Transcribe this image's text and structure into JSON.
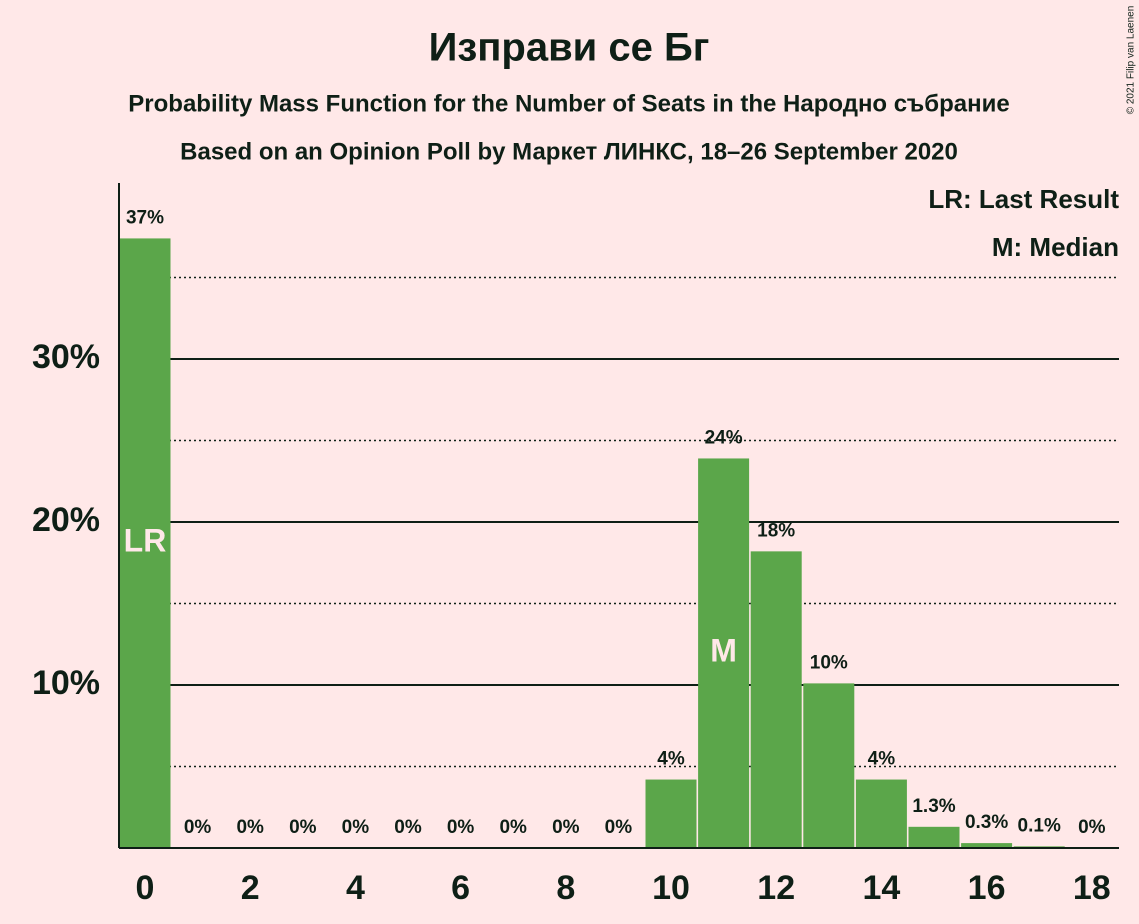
{
  "chart_data": {
    "type": "bar",
    "title": "Изправи се Бг",
    "subtitle": "Probability Mass Function for the Number of Seats in the Народно събрание",
    "subtitle2": "Based on an Opinion Poll by Маркет ЛИНКС, 18–26 September 2020",
    "copyright": "© 2021 Filip van Laenen",
    "categories": [
      0,
      null,
      2,
      null,
      4,
      null,
      6,
      null,
      8,
      null,
      10,
      null,
      12,
      null,
      14,
      null,
      16,
      null,
      18
    ],
    "values": [
      37.4,
      0,
      0,
      0,
      0,
      0,
      0,
      0,
      0,
      0,
      4.2,
      23.9,
      18.2,
      10.1,
      4.2,
      1.3,
      0.3,
      0.1,
      0
    ],
    "value_labels": [
      "37%",
      "0%",
      "0%",
      "0%",
      "0%",
      "0%",
      "0%",
      "0%",
      "0%",
      "0%",
      "4%",
      "24%",
      "18%",
      "10%",
      "4%",
      "1.3%",
      "0.3%",
      "0.1%",
      "0%"
    ],
    "bar_annotations": [
      "LR",
      null,
      null,
      null,
      null,
      null,
      null,
      null,
      null,
      null,
      null,
      "M",
      null,
      null,
      null,
      null,
      null,
      null,
      null
    ],
    "color": "#5ba64a",
    "ylim": [
      0,
      40.8
    ],
    "yticks": [
      {
        "value": 10,
        "label": "10%"
      },
      {
        "value": 20,
        "label": "20%"
      },
      {
        "value": 30,
        "label": "30%"
      }
    ],
    "minor_yticks": [
      5,
      15,
      25,
      35
    ],
    "grid": true,
    "legend": [
      "LR: Last Result",
      "M: Median"
    ],
    "legend_position": "top-right"
  }
}
